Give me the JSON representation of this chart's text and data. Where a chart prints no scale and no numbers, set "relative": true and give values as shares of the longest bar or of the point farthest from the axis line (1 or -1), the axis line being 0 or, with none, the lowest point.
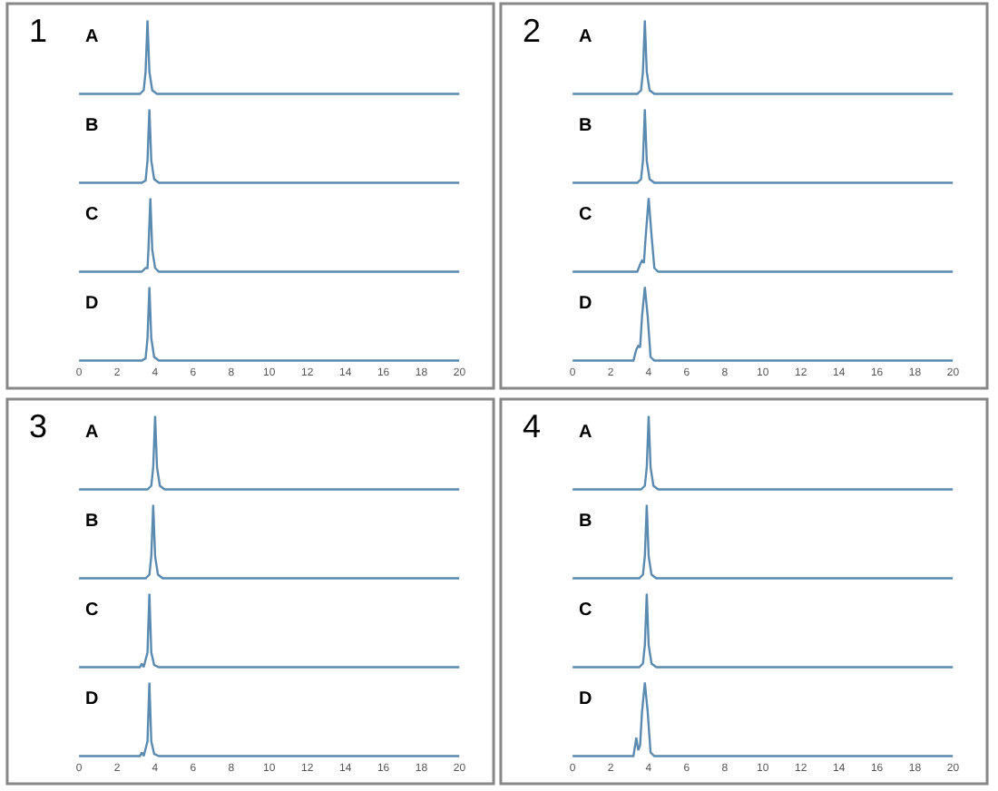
{
  "chart_data": [
    {
      "type": "line",
      "title": "A",
      "annotations": [
        "1"
      ],
      "relative": true,
      "xlim": [
        0,
        20
      ],
      "tick_labels": false,
      "series": [
        {
          "color": "#5a8ab0",
          "x": [
            0,
            3.2,
            3.4,
            3.5,
            3.6,
            3.7,
            3.85,
            4.1,
            20
          ],
          "values": [
            0,
            0,
            0.05,
            0.3,
            1,
            0.3,
            0.05,
            0,
            0
          ]
        }
      ]
    },
    {
      "type": "line",
      "title": "B",
      "relative": true,
      "xlim": [
        0,
        20
      ],
      "tick_labels": false,
      "series": [
        {
          "color": "#5a8ab0",
          "x": [
            0,
            3.3,
            3.5,
            3.6,
            3.7,
            3.8,
            3.95,
            4.2,
            20
          ],
          "values": [
            0,
            0,
            0.03,
            0.3,
            1,
            0.3,
            0.05,
            0,
            0
          ]
        }
      ]
    },
    {
      "type": "line",
      "title": "C",
      "relative": true,
      "xlim": [
        0,
        20
      ],
      "tick_labels": false,
      "series": [
        {
          "color": "#5a8ab0",
          "x": [
            0,
            3.3,
            3.5,
            3.6,
            3.65,
            3.75,
            3.85,
            4.0,
            4.2,
            20
          ],
          "values": [
            0,
            0,
            0.05,
            0.05,
            0.3,
            1,
            0.3,
            0.05,
            0,
            0
          ]
        }
      ]
    },
    {
      "type": "line",
      "title": "D",
      "relative": true,
      "xlim": [
        0,
        20
      ],
      "xticks": [
        0,
        2,
        4,
        6,
        8,
        10,
        12,
        14,
        16,
        18,
        20
      ],
      "tick_labels": "x",
      "series": [
        {
          "color": "#5a8ab0",
          "x": [
            0,
            3.3,
            3.5,
            3.6,
            3.7,
            3.8,
            3.95,
            4.2,
            20
          ],
          "values": [
            0,
            0,
            0.03,
            0.3,
            1,
            0.3,
            0.05,
            0,
            0
          ]
        }
      ]
    },
    {
      "type": "line",
      "title": "A",
      "annotations": [
        "2"
      ],
      "relative": true,
      "xlim": [
        0,
        20
      ],
      "tick_labels": false,
      "series": [
        {
          "color": "#5a8ab0",
          "x": [
            0,
            3.4,
            3.6,
            3.7,
            3.8,
            3.9,
            4.05,
            4.3,
            20
          ],
          "values": [
            0,
            0,
            0.05,
            0.3,
            1,
            0.3,
            0.05,
            0,
            0
          ]
        }
      ]
    },
    {
      "type": "line",
      "title": "B",
      "relative": true,
      "xlim": [
        0,
        20
      ],
      "tick_labels": false,
      "series": [
        {
          "color": "#5a8ab0",
          "x": [
            0,
            3.4,
            3.6,
            3.7,
            3.8,
            3.9,
            4.05,
            4.3,
            20
          ],
          "values": [
            0,
            0,
            0.05,
            0.3,
            1,
            0.3,
            0.05,
            0,
            0
          ]
        }
      ]
    },
    {
      "type": "line",
      "title": "C",
      "relative": true,
      "xlim": [
        0,
        20
      ],
      "tick_labels": false,
      "series": [
        {
          "color": "#5a8ab0",
          "x": [
            0,
            3.4,
            3.55,
            3.65,
            3.75,
            3.85,
            4.0,
            4.15,
            4.3,
            4.5,
            20
          ],
          "values": [
            0,
            0,
            0.1,
            0.15,
            0.12,
            0.5,
            1,
            0.5,
            0.05,
            0,
            0
          ]
        }
      ]
    },
    {
      "type": "line",
      "title": "D",
      "relative": true,
      "xlim": [
        0,
        20
      ],
      "xticks": [
        0,
        2,
        4,
        6,
        8,
        10,
        12,
        14,
        16,
        18,
        20
      ],
      "tick_labels": "x",
      "series": [
        {
          "color": "#5a8ab0",
          "x": [
            0,
            3.2,
            3.35,
            3.45,
            3.55,
            3.65,
            3.8,
            3.95,
            4.1,
            4.3,
            20
          ],
          "values": [
            0,
            0,
            0.15,
            0.2,
            0.18,
            0.6,
            1,
            0.6,
            0.05,
            0,
            0
          ]
        }
      ]
    },
    {
      "type": "line",
      "title": "A",
      "annotations": [
        "3"
      ],
      "relative": true,
      "xlim": [
        0,
        20
      ],
      "tick_labels": false,
      "series": [
        {
          "color": "#5a8ab0",
          "x": [
            0,
            3.6,
            3.8,
            3.9,
            4.0,
            4.1,
            4.25,
            4.5,
            20
          ],
          "values": [
            0,
            0,
            0.05,
            0.3,
            1,
            0.3,
            0.05,
            0,
            0
          ]
        }
      ]
    },
    {
      "type": "line",
      "title": "B",
      "relative": true,
      "xlim": [
        0,
        20
      ],
      "tick_labels": false,
      "series": [
        {
          "color": "#5a8ab0",
          "x": [
            0,
            3.5,
            3.7,
            3.8,
            3.9,
            4.0,
            4.15,
            4.4,
            20
          ],
          "values": [
            0,
            0,
            0.05,
            0.3,
            1,
            0.3,
            0.05,
            0,
            0
          ]
        }
      ]
    },
    {
      "type": "line",
      "title": "C",
      "relative": true,
      "xlim": [
        0,
        20
      ],
      "tick_labels": false,
      "series": [
        {
          "color": "#5a8ab0",
          "x": [
            0,
            3.2,
            3.3,
            3.4,
            3.6,
            3.7,
            3.8,
            3.95,
            4.2,
            20
          ],
          "values": [
            0,
            0,
            0.05,
            0,
            0.2,
            1,
            0.2,
            0.03,
            0,
            0
          ]
        }
      ]
    },
    {
      "type": "line",
      "title": "D",
      "relative": true,
      "xlim": [
        0,
        20
      ],
      "xticks": [
        0,
        2,
        4,
        6,
        8,
        10,
        12,
        14,
        16,
        18,
        20
      ],
      "tick_labels": "x",
      "series": [
        {
          "color": "#5a8ab0",
          "x": [
            0,
            3.2,
            3.3,
            3.4,
            3.6,
            3.7,
            3.8,
            3.95,
            4.2,
            20
          ],
          "values": [
            0,
            0,
            0.05,
            0,
            0.2,
            1,
            0.2,
            0.03,
            0,
            0
          ]
        }
      ]
    },
    {
      "type": "line",
      "title": "A",
      "annotations": [
        "4"
      ],
      "relative": true,
      "xlim": [
        0,
        20
      ],
      "tick_labels": false,
      "series": [
        {
          "color": "#5a8ab0",
          "x": [
            0,
            3.6,
            3.8,
            3.9,
            4.0,
            4.1,
            4.25,
            4.5,
            20
          ],
          "values": [
            0,
            0,
            0.05,
            0.3,
            1,
            0.3,
            0.05,
            0,
            0
          ]
        }
      ]
    },
    {
      "type": "line",
      "title": "B",
      "relative": true,
      "xlim": [
        0,
        20
      ],
      "tick_labels": false,
      "series": [
        {
          "color": "#5a8ab0",
          "x": [
            0,
            3.5,
            3.7,
            3.8,
            3.9,
            4.0,
            4.15,
            4.4,
            20
          ],
          "values": [
            0,
            0,
            0.05,
            0.3,
            1,
            0.3,
            0.05,
            0,
            0
          ]
        }
      ]
    },
    {
      "type": "line",
      "title": "C",
      "relative": true,
      "xlim": [
        0,
        20
      ],
      "tick_labels": false,
      "series": [
        {
          "color": "#5a8ab0",
          "x": [
            0,
            3.5,
            3.7,
            3.8,
            3.9,
            4.0,
            4.15,
            4.4,
            20
          ],
          "values": [
            0,
            0,
            0.05,
            0.3,
            1,
            0.3,
            0.05,
            0,
            0
          ]
        }
      ]
    },
    {
      "type": "line",
      "title": "D",
      "relative": true,
      "xlim": [
        0,
        20
      ],
      "xticks": [
        0,
        2,
        4,
        6,
        8,
        10,
        12,
        14,
        16,
        18,
        20
      ],
      "tick_labels": "x",
      "series": [
        {
          "color": "#5a8ab0",
          "x": [
            0,
            3.2,
            3.35,
            3.45,
            3.55,
            3.65,
            3.8,
            3.95,
            4.1,
            4.3,
            20
          ],
          "values": [
            0,
            0,
            0.25,
            0.08,
            0.15,
            0.6,
            1,
            0.6,
            0.05,
            0,
            0
          ]
        }
      ]
    }
  ]
}
